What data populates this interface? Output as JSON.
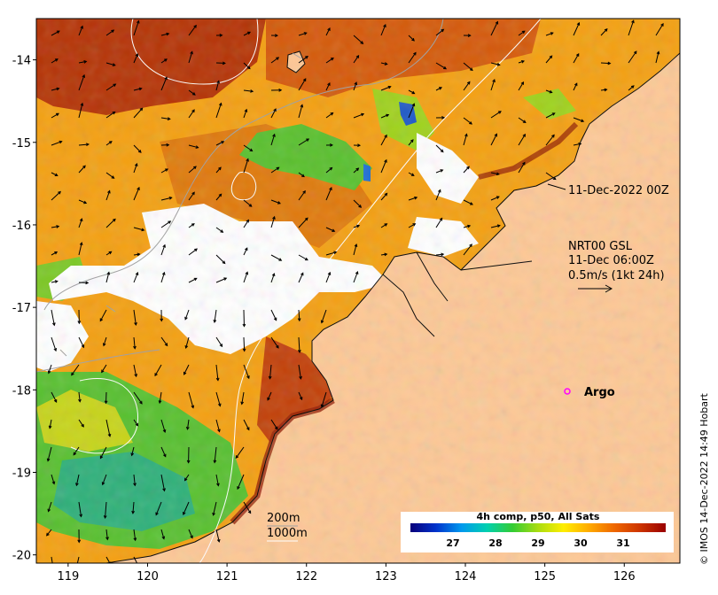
{
  "map": {
    "lon_range": [
      118.6,
      126.7
    ],
    "lat_range": [
      -20.1,
      -13.5
    ],
    "x_ticks": [
      119,
      120,
      121,
      122,
      123,
      124,
      125,
      126
    ],
    "y_ticks": [
      -14,
      -15,
      -16,
      -17,
      -18,
      -19,
      -20
    ],
    "colors": {
      "land": "#fdc896",
      "cloud": "#ffffff",
      "isobath_200": "#a0a0a0",
      "isobath_1000": "#ffffff",
      "argo_marker": "#ff00ff"
    }
  },
  "annotations": {
    "front_time": "11-Dec-2022 00Z",
    "current_title": "NRT00 GSL",
    "current_time": "11-Dec 06:00Z",
    "current_scale": "0.5m/s (1kt 24h)",
    "argo_label": "Argo",
    "argo_position": {
      "lon": 125.3,
      "lat": -18.0
    },
    "isobath_200_label": "200m",
    "isobath_1000_label": "1000m"
  },
  "colorbar": {
    "title": "4h comp, p50, All Sats",
    "range": [
      26,
      32
    ],
    "ticks": [
      27,
      28,
      29,
      30,
      31
    ],
    "stops": [
      "#08007a",
      "#0033cc",
      "#0099ee",
      "#00d0b0",
      "#33cc33",
      "#aadd11",
      "#ffee00",
      "#ffaa00",
      "#ee6600",
      "#cc3300",
      "#990000"
    ]
  },
  "copyright": "© IMOS 14-Dec-2022 14:49 Hobart"
}
